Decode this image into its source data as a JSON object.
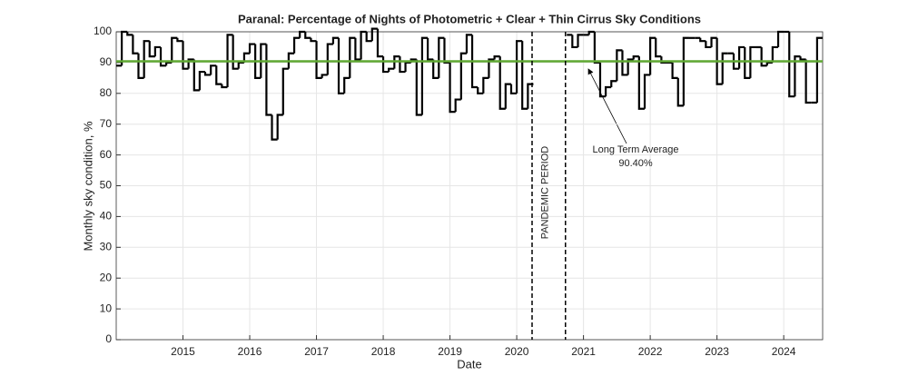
{
  "chart_data": {
    "type": "step",
    "title": "Paranal: Percentage of Nights of Photometric + Clear + Thin Cirrus Sky Conditions",
    "x_label": "Date",
    "y_label": "Monthly sky condition, %",
    "x": [
      2014.0,
      2014.083,
      2014.167,
      2014.25,
      2014.333,
      2014.417,
      2014.5,
      2014.583,
      2014.667,
      2014.75,
      2014.833,
      2014.917,
      2015.0,
      2015.083,
      2015.167,
      2015.25,
      2015.333,
      2015.417,
      2015.5,
      2015.583,
      2015.667,
      2015.75,
      2015.833,
      2015.917,
      2016.0,
      2016.083,
      2016.167,
      2016.25,
      2016.333,
      2016.417,
      2016.5,
      2016.583,
      2016.667,
      2016.75,
      2016.833,
      2016.917,
      2017.0,
      2017.083,
      2017.167,
      2017.25,
      2017.333,
      2017.417,
      2017.5,
      2017.583,
      2017.667,
      2017.75,
      2017.833,
      2017.917,
      2018.0,
      2018.083,
      2018.167,
      2018.25,
      2018.333,
      2018.417,
      2018.5,
      2018.583,
      2018.667,
      2018.75,
      2018.833,
      2018.917,
      2019.0,
      2019.083,
      2019.167,
      2019.25,
      2019.333,
      2019.417,
      2019.5,
      2019.583,
      2019.667,
      2019.75,
      2019.833,
      2019.917,
      2020.0,
      2020.083,
      2020.167,
      2020.25,
      2020.333,
      2020.417,
      2020.5,
      2020.583,
      2020.667,
      2020.75,
      2020.833,
      2020.917,
      2021.0,
      2021.083,
      2021.167,
      2021.25,
      2021.333,
      2021.417,
      2021.5,
      2021.583,
      2021.667,
      2021.75,
      2021.833,
      2021.917,
      2022.0,
      2022.083,
      2022.167,
      2022.25,
      2022.333,
      2022.417,
      2022.5,
      2022.583,
      2022.667,
      2022.75,
      2022.833,
      2022.917,
      2023.0,
      2023.083,
      2023.167,
      2023.25,
      2023.333,
      2023.417,
      2023.5,
      2023.583,
      2023.667,
      2023.75,
      2023.833,
      2023.917,
      2024.0,
      2024.083,
      2024.167,
      2024.25,
      2024.333,
      2024.417,
      2024.5
    ],
    "values": [
      89,
      100,
      99,
      93,
      85,
      97,
      92,
      95,
      89,
      90,
      98,
      97,
      88,
      91,
      81,
      87,
      86,
      89,
      83,
      82,
      99,
      88,
      90,
      93,
      96,
      85,
      96,
      73,
      65,
      73,
      88,
      93,
      98,
      100,
      98,
      97,
      85,
      86,
      96,
      98,
      80,
      85,
      98,
      91,
      100,
      97,
      101,
      92,
      87,
      88,
      92,
      87,
      90,
      91,
      73,
      98,
      91,
      85,
      98,
      90,
      74,
      78,
      93,
      99,
      82,
      80,
      85,
      91,
      92,
      75,
      83,
      80,
      97,
      75,
      83,
      null,
      null,
      null,
      null,
      null,
      null,
      99,
      95,
      99,
      99,
      100,
      90,
      79,
      82,
      84,
      94,
      86,
      91,
      92,
      75,
      86,
      98,
      92,
      90,
      90,
      85,
      76,
      98,
      98,
      98,
      97,
      95,
      98,
      83,
      93,
      93,
      88,
      95,
      85,
      95,
      95,
      89,
      90,
      95,
      100,
      100,
      79,
      92,
      91,
      77,
      77,
      98
    ],
    "color": "#000000",
    "xlim": [
      2014.0,
      2024.583
    ],
    "xticks": [
      2015,
      2016,
      2017,
      2018,
      2019,
      2020,
      2021,
      2022,
      2023,
      2024
    ],
    "ylim": [
      0,
      100
    ],
    "yticks": [
      0,
      10,
      20,
      30,
      40,
      50,
      60,
      70,
      80,
      90,
      100
    ],
    "grid": true,
    "average": {
      "value": 90.4,
      "label": "90.40%",
      "text": "Long Term Average",
      "color": "#5fa832"
    },
    "period": {
      "start": 2020.23,
      "end": 2020.73,
      "label": "PANDEMIC PERIOD"
    }
  }
}
